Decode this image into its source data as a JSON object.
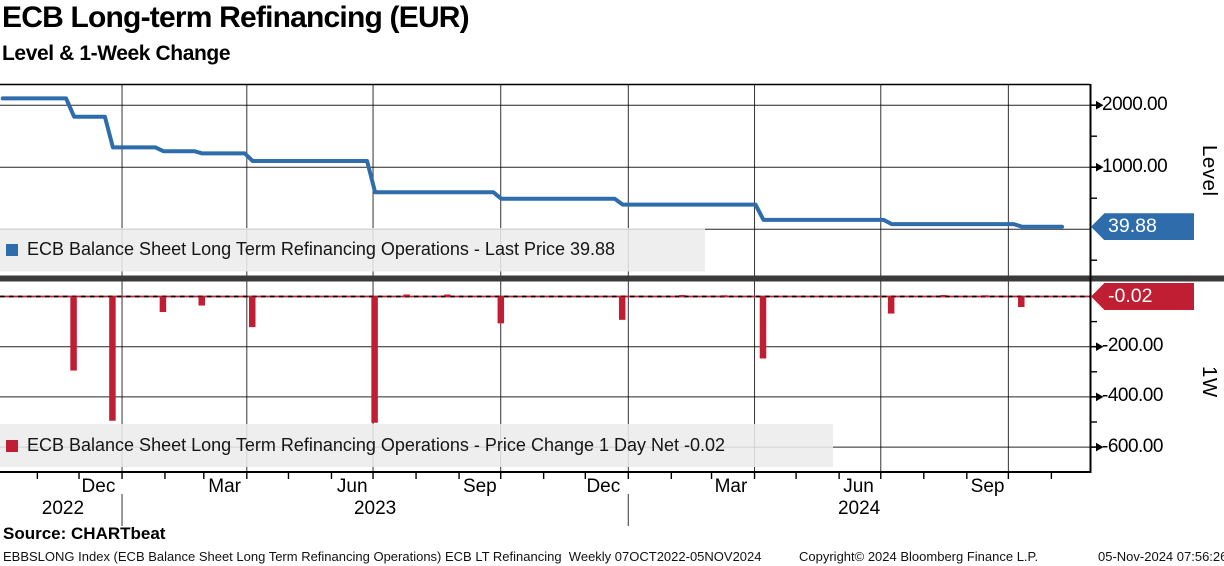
{
  "header": {
    "title": "ECB Long-term Refinancing (EUR)",
    "subtitle": "Level & 1-Week Change"
  },
  "colors": {
    "level_line": "#2e6cab",
    "change_bar": "#c01e33",
    "grid": "#000000",
    "separator": "#3a3a3a",
    "legend_band": "#ececec",
    "badge_text": "#ffffff"
  },
  "panels": {
    "level": {
      "axis_label": "Level",
      "badge": "39.88",
      "legend": "ECB Balance Sheet Long Term Refinancing Operations - Last Price 39.88",
      "ticks": [
        {
          "label": "2000.00",
          "value": 2000,
          "major": true
        },
        {
          "value": 1500,
          "major": false
        },
        {
          "label": "1000.00",
          "value": 1000,
          "major": true
        },
        {
          "value": 500,
          "major": false
        },
        {
          "value": -500,
          "major": false
        }
      ]
    },
    "change": {
      "axis_label": "1W",
      "badge": "-0.02",
      "legend": "ECB Balance Sheet Long Term Refinancing Operations - Price Change 1 Day Net -0.02",
      "ticks": [
        {
          "value": -100,
          "major": false
        },
        {
          "label": "-200.00",
          "value": -200,
          "major": true
        },
        {
          "value": -300,
          "major": false
        },
        {
          "label": "-400.00",
          "value": -400,
          "major": true
        },
        {
          "value": -500,
          "major": false
        },
        {
          "label": "-600.00",
          "value": -600,
          "major": true
        }
      ]
    }
  },
  "x_axis": {
    "months": [
      {
        "label": "Dec",
        "week": 9.86
      },
      {
        "label": "Mar",
        "week": 22.86
      },
      {
        "label": "Jun",
        "week": 36.0
      },
      {
        "label": "Sep",
        "week": 49.14
      },
      {
        "label": "Dec",
        "week": 61.86
      },
      {
        "label": "Mar",
        "week": 75.0
      },
      {
        "label": "Jun",
        "week": 88.14
      },
      {
        "label": "Sep",
        "week": 101.43
      }
    ],
    "years": [
      {
        "label": "2022",
        "week": 6.2
      },
      {
        "label": "2023",
        "week": 38.35
      },
      {
        "label": "2024",
        "week": 88.2
      }
    ],
    "quarter_gridline_weeks": [
      12.29,
      25.14,
      38.14,
      51.29,
      64.43,
      77.43,
      90.43,
      103.57
    ],
    "year_separator_weeks": [
      12.29,
      64.43
    ],
    "month_tick_weeks": [
      3.57,
      7.86,
      12.29,
      16.71,
      20.71,
      25.14,
      29.43,
      33.86,
      38.14,
      42.57,
      47.0,
      51.29,
      55.71,
      60.0,
      64.43,
      68.86,
      73.0,
      77.43,
      81.71,
      86.14,
      90.43,
      94.86,
      99.29,
      103.57,
      108.0
    ]
  },
  "source": {
    "label": "Source: CHARTbeat"
  },
  "footer": {
    "left": "EBBSLONG Index (ECB Balance Sheet Long Term Refinancing Operations) ECB LT Refinancing  Weekly 07OCT2022-05NOV2024",
    "center": "Copyright© 2024 Bloomberg Finance L.P.",
    "right": "05-Nov-2024 07:56:26"
  },
  "chart_data": [
    {
      "type": "line",
      "name": "ECB Balance Sheet Long Term Refinancing Operations - Last Price",
      "panel": "Level",
      "style": "step",
      "last_price": 39.88,
      "x_range": [
        "07OCT2022",
        "05NOV2024"
      ],
      "frequency": "Weekly",
      "ylim_hint": [
        0,
        2300
      ],
      "ytick_labels": [
        "2000.00",
        "1000.00"
      ],
      "legend_position": "inside-bottom-left",
      "grid": true,
      "steps": [
        {
          "date": "07OCT2022",
          "week": 0,
          "level": 2110
        },
        {
          "date": "25NOV2022",
          "week": 7.3,
          "level": 1815
        },
        {
          "date": "23DEC2022",
          "week": 11.3,
          "level": 1320
        },
        {
          "date": "27JAN2023",
          "week": 16.5,
          "level": 1258
        },
        {
          "date": "24FEB2023",
          "week": 20.5,
          "level": 1222
        },
        {
          "date": "31MAR2023",
          "week": 25.7,
          "level": 1100
        },
        {
          "date": "28JUN2023",
          "week": 38.3,
          "level": 597
        },
        {
          "date": "03OCT2023",
          "week": 51.3,
          "level": 490
        },
        {
          "date": "27DEC2023",
          "week": 63.8,
          "level": 397
        },
        {
          "date": "03APR2024",
          "week": 78.3,
          "level": 150
        },
        {
          "date": "03JUL2024",
          "week": 91.5,
          "level": 82
        },
        {
          "date": "09OCT2024",
          "week": 104.9,
          "level": 39.9
        },
        {
          "date": "05NOV2024",
          "week": 108.6,
          "level": 39.88
        }
      ]
    },
    {
      "type": "bar",
      "name": "ECB Balance Sheet Long Term Refinancing Operations - Price Change 1 Day Net",
      "panel": "1W",
      "last_change": -0.02,
      "ytick_labels": [
        "-200.00",
        "-400.00",
        "-600.00"
      ],
      "zero_line": "dashed",
      "bars": [
        {
          "week": 7.3,
          "change": -295
        },
        {
          "week": 11.3,
          "change": -495
        },
        {
          "week": 16.5,
          "change": -62
        },
        {
          "week": 20.5,
          "change": -36
        },
        {
          "week": 25.7,
          "change": -122
        },
        {
          "week": 38.3,
          "change": -503
        },
        {
          "week": 41.6,
          "change": 8
        },
        {
          "week": 45.8,
          "change": 8
        },
        {
          "week": 51.3,
          "change": -107
        },
        {
          "week": 63.8,
          "change": -93
        },
        {
          "week": 70.0,
          "change": 6
        },
        {
          "week": 74.3,
          "change": 5
        },
        {
          "week": 78.3,
          "change": -247
        },
        {
          "week": 91.5,
          "change": -68
        },
        {
          "week": 96.9,
          "change": 6
        },
        {
          "week": 101.2,
          "change": 5
        },
        {
          "week": 104.9,
          "change": -42
        },
        {
          "week": 108.6,
          "change": -0.02
        }
      ]
    }
  ]
}
